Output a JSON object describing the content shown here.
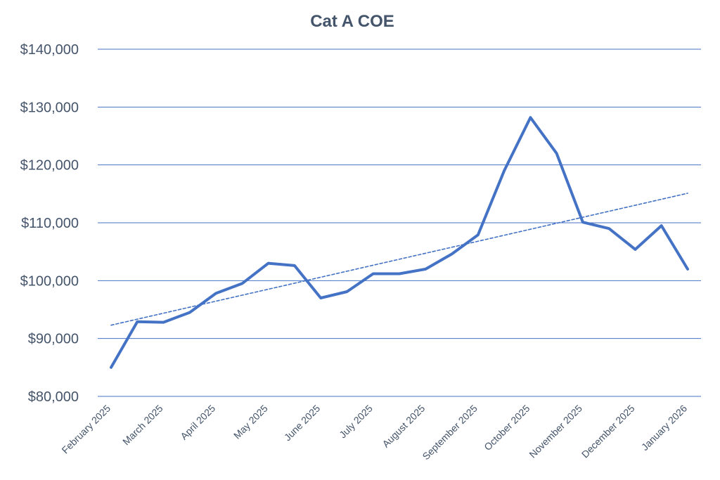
{
  "chart_data": {
    "type": "line",
    "title": "Cat A COE",
    "xlabel": "",
    "ylabel": "",
    "ylim": [
      80000,
      140000
    ],
    "yticks": [
      80000,
      90000,
      100000,
      110000,
      120000,
      130000,
      140000
    ],
    "ytick_labels": [
      "$80,000",
      "$90,000",
      "$100,000",
      "$110,000",
      "$120,000",
      "$130,000",
      "$140,000"
    ],
    "x_labels": [
      "February 2025",
      "March 2025",
      "April 2025",
      "May 2025",
      "June 2025",
      "July 2025",
      "August 2025",
      "September 2025",
      "October 2025",
      "November 2025",
      "December 2025",
      "January 2026"
    ],
    "grid": true,
    "legend": "none",
    "series": [
      {
        "values": [
          85000,
          92900,
          92800,
          94500,
          97800,
          99500,
          103000,
          102600,
          97000,
          98100,
          101200,
          101200,
          102000,
          104600,
          107900,
          119000,
          128200,
          122000,
          110100,
          109000,
          105400,
          109500,
          102000
        ],
        "color": "#4472c4",
        "style": "solid"
      },
      {
        "values": [
          92300,
          115100
        ],
        "color": "#4472c4",
        "style": "dashed-trendline"
      }
    ]
  }
}
